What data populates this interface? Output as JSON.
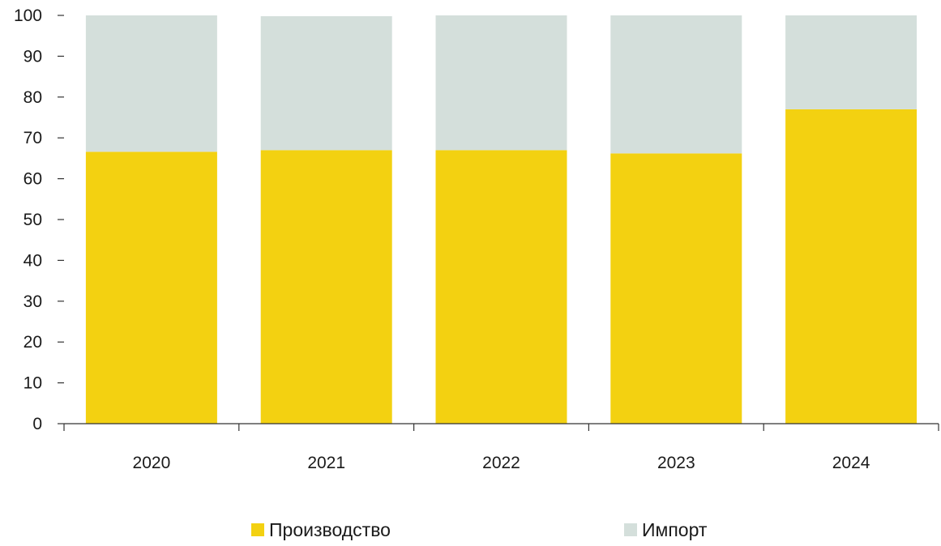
{
  "chart_data": {
    "type": "bar",
    "stacked": true,
    "categories": [
      "2020",
      "2021",
      "2022",
      "2023",
      "2024"
    ],
    "series": [
      {
        "name": "Производство",
        "values": [
          66.6,
          67.0,
          67.0,
          66.2,
          77.0
        ],
        "color": "#f3d111"
      },
      {
        "name": "Импорт",
        "values": [
          33.4,
          32.8,
          33.0,
          33.8,
          23.0
        ],
        "color": "#d4dfdb"
      }
    ],
    "ylim": [
      0,
      100
    ],
    "yticks": [
      "0",
      "10",
      "20",
      "30",
      "40",
      "50",
      "60",
      "70",
      "80",
      "90",
      "100"
    ],
    "title": "",
    "xlabel": "",
    "ylabel": "",
    "grid": false,
    "legend_position": "bottom"
  }
}
